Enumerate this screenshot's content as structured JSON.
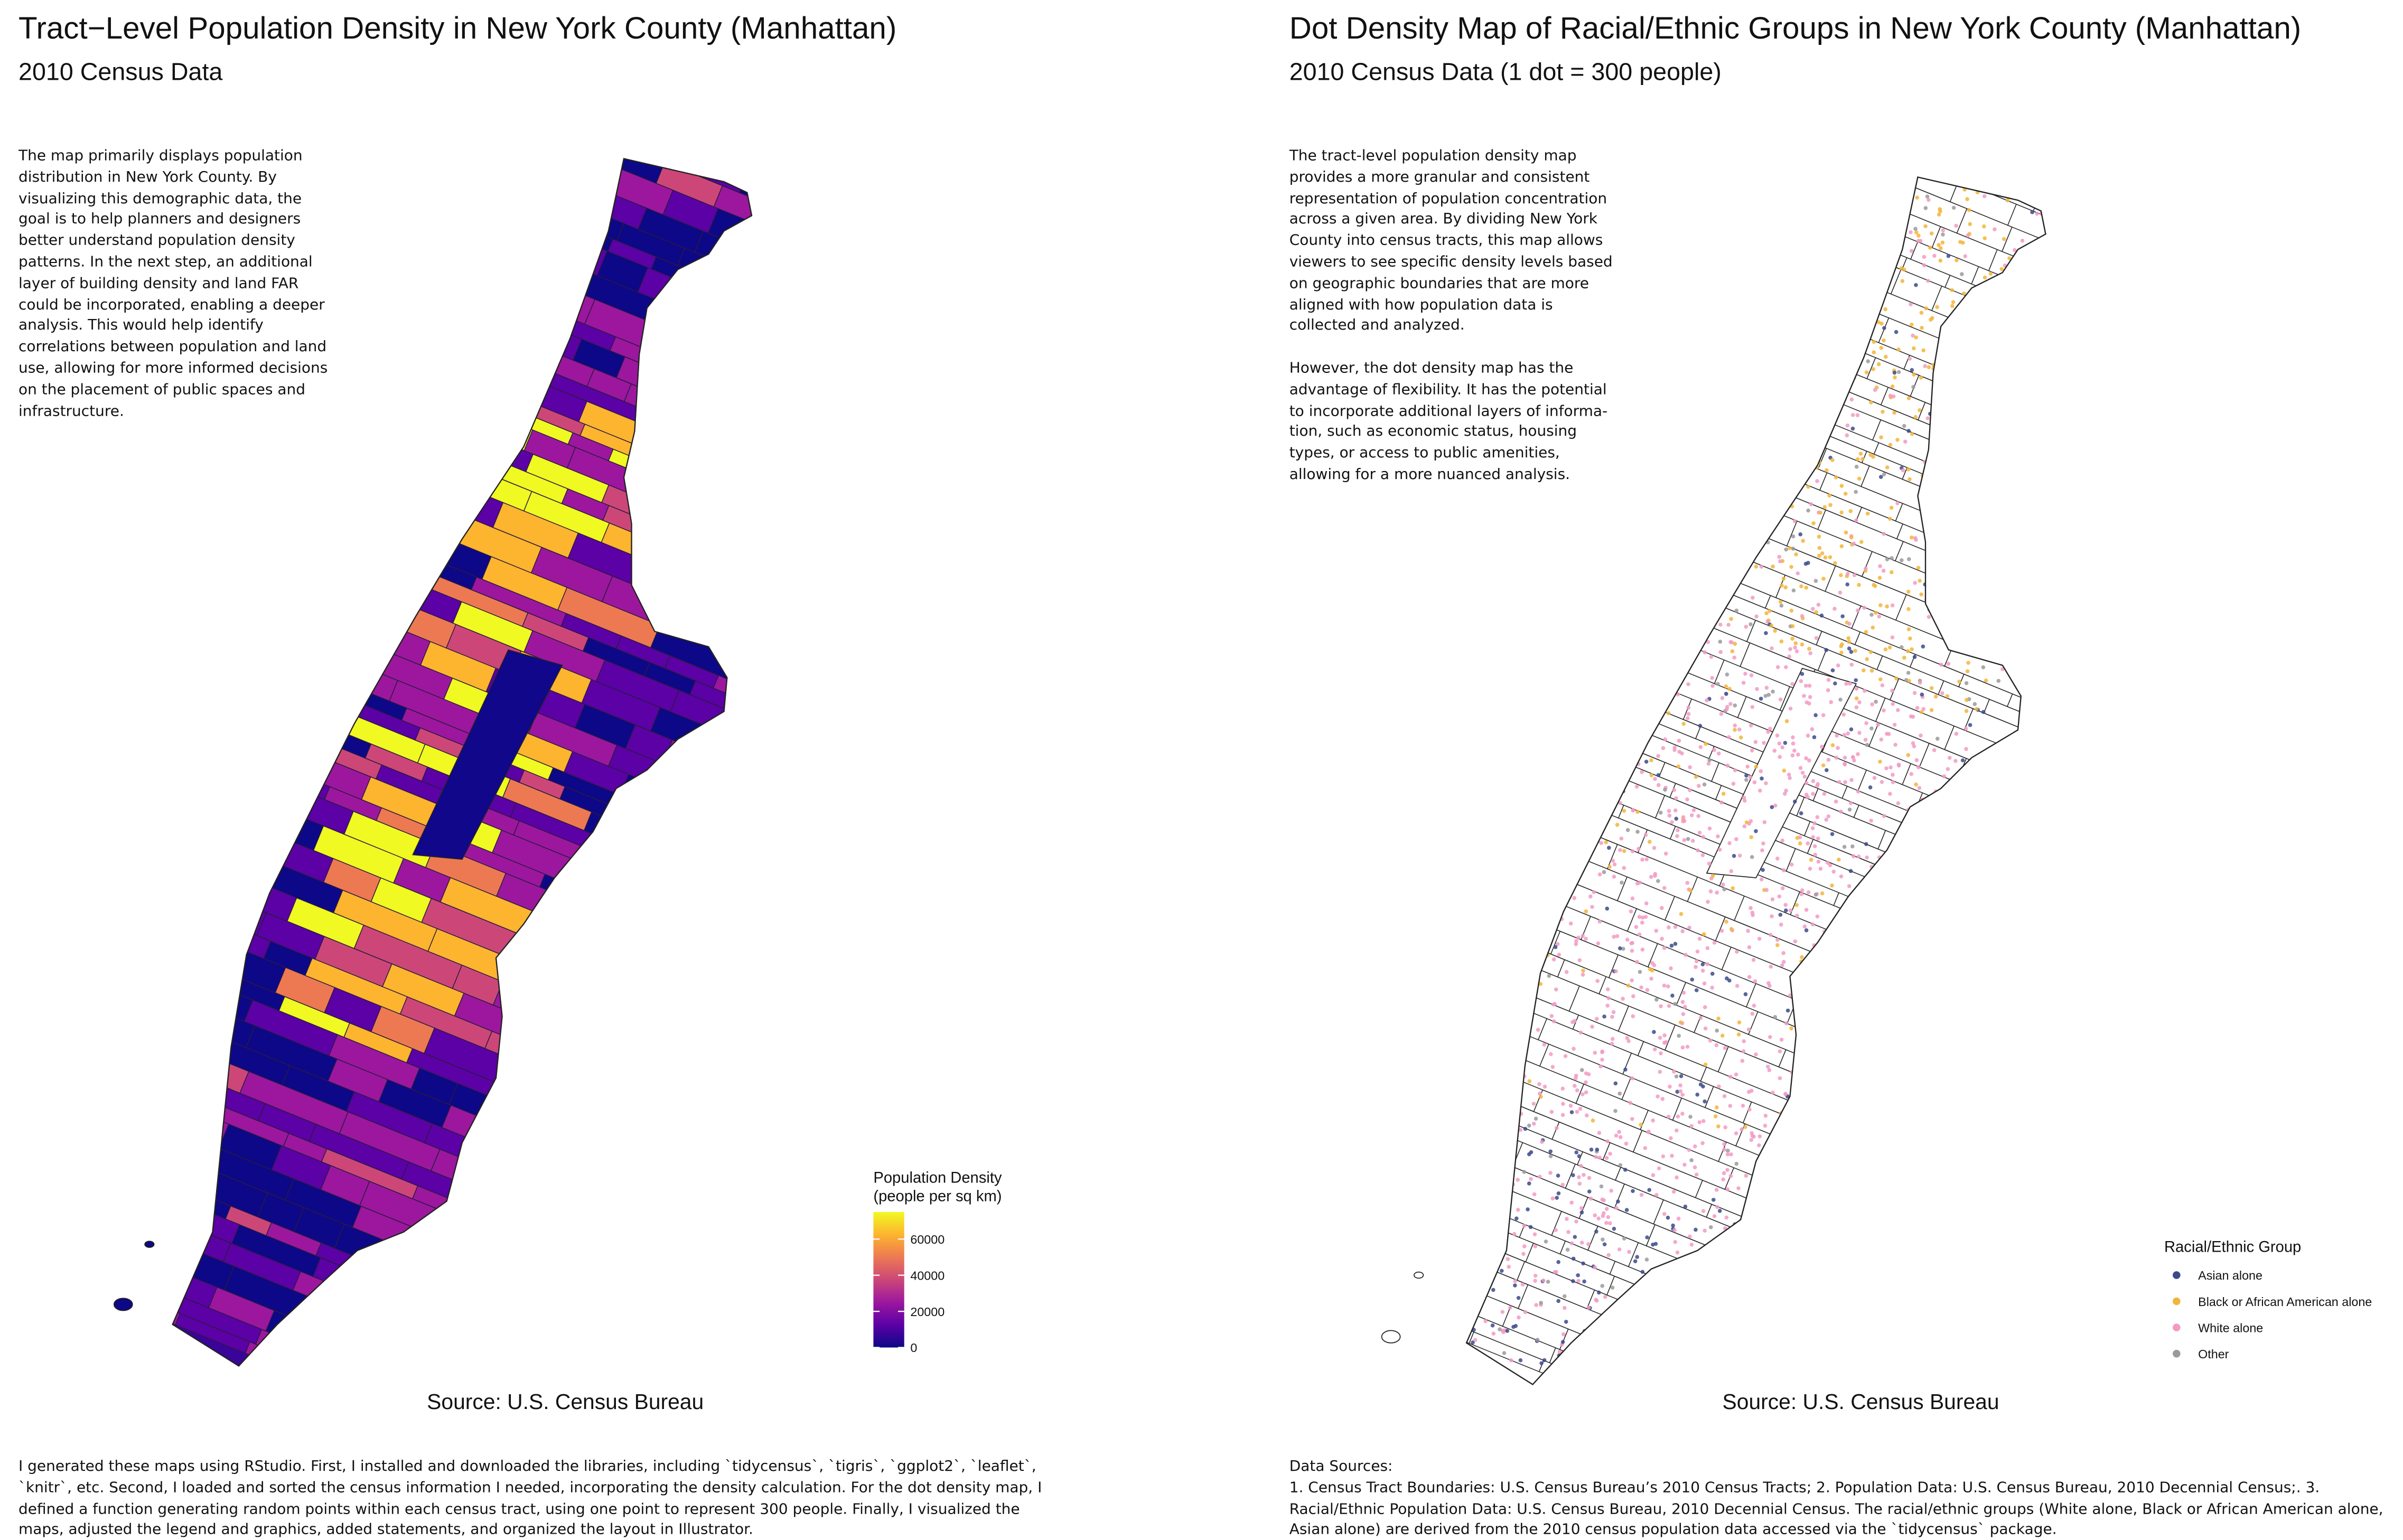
{
  "left_panel": {
    "title": "Tract−Level Population Density in New York County (Manhattan)",
    "subtitle": "2010 Census Data",
    "description": "The map primarily displays population distribution in New York County. By visualizing this demographic data, the goal is to help planners and designers better understand population density patterns. In the next step, an additional layer of building density and land FAR could be incorporated, enabling a deeper analysis. This would help identify correlations between population and land use, allowing for more informed decisions on the placement of public spaces and infrastructure.",
    "legend": {
      "title": "Population Density",
      "subtitle": "(people per sq km)",
      "limits": [
        0,
        75000
      ],
      "ticks": [
        0,
        20000,
        40000,
        60000
      ],
      "colors": [
        "#0d0887",
        "#5c01a6",
        "#9c179e",
        "#cc4778",
        "#ed7953",
        "#fdb42f",
        "#f0f921"
      ]
    },
    "source": "Source: U.S. Census Bureau"
  },
  "right_panel": {
    "title": "Dot Density Map of Racial/Ethnic Groups in New York County (Manhattan)",
    "subtitle": "2010 Census Data (1 dot = 300 people)",
    "description": [
      "The tract-level population density map provides a more granular and consistent representation of population concentration across a given area. By dividing New York County into census tracts, this map allows viewers to see specific density levels based on geographic boundaries that are more aligned with how population data is collected and analyzed.",
      "However, the dot density map has the advantage of flexibility. It has the potential to incorporate additional layers of informa-tion, such as economic status, housing types, or access to public amenities, allowing for a more nuanced analysis."
    ],
    "legend": {
      "title": "Racial/Ethnic Group",
      "items": [
        {
          "label": "Asian alone",
          "color": "#3b4a8a"
        },
        {
          "label": "Black or African American alone",
          "color": "#f2b53a"
        },
        {
          "label": "White alone",
          "color": "#f29ac4"
        },
        {
          "label": "Other",
          "color": "#9a9a9a"
        }
      ]
    },
    "source": "Source: U.S. Census Bureau",
    "data_sources": {
      "heading": "Data Sources:",
      "text": "1. Census Tract Boundaries: U.S. Census Bureau’s 2010 Census Tracts; 2. Population Data: U.S. Census Bureau, 2010 Decennial Census;. 3. Racial/Ethnic Population Data: U.S. Census Bureau, 2010 Decennial Census. The racial/ethnic groups (White alone, Black or African American alone, Asian alone) are derived from the 2010 census population data accessed via the `tidycensus` package."
    }
  },
  "footer_note": "I generated these maps using RStudio. First, I installed and downloaded the libraries, including `tidycensus`, `tigris`, `ggplot2`, `leaflet`, `knitr`, etc. Second, I loaded and sorted the census information I needed, incorporating the density calculation. For the dot density map, I defined a function generating random points within each census tract, using one point to represent 300 people. Finally, I visualized the maps, adjusted the legend and graphics, added statements, and organized the layout in Illustrator."
}
